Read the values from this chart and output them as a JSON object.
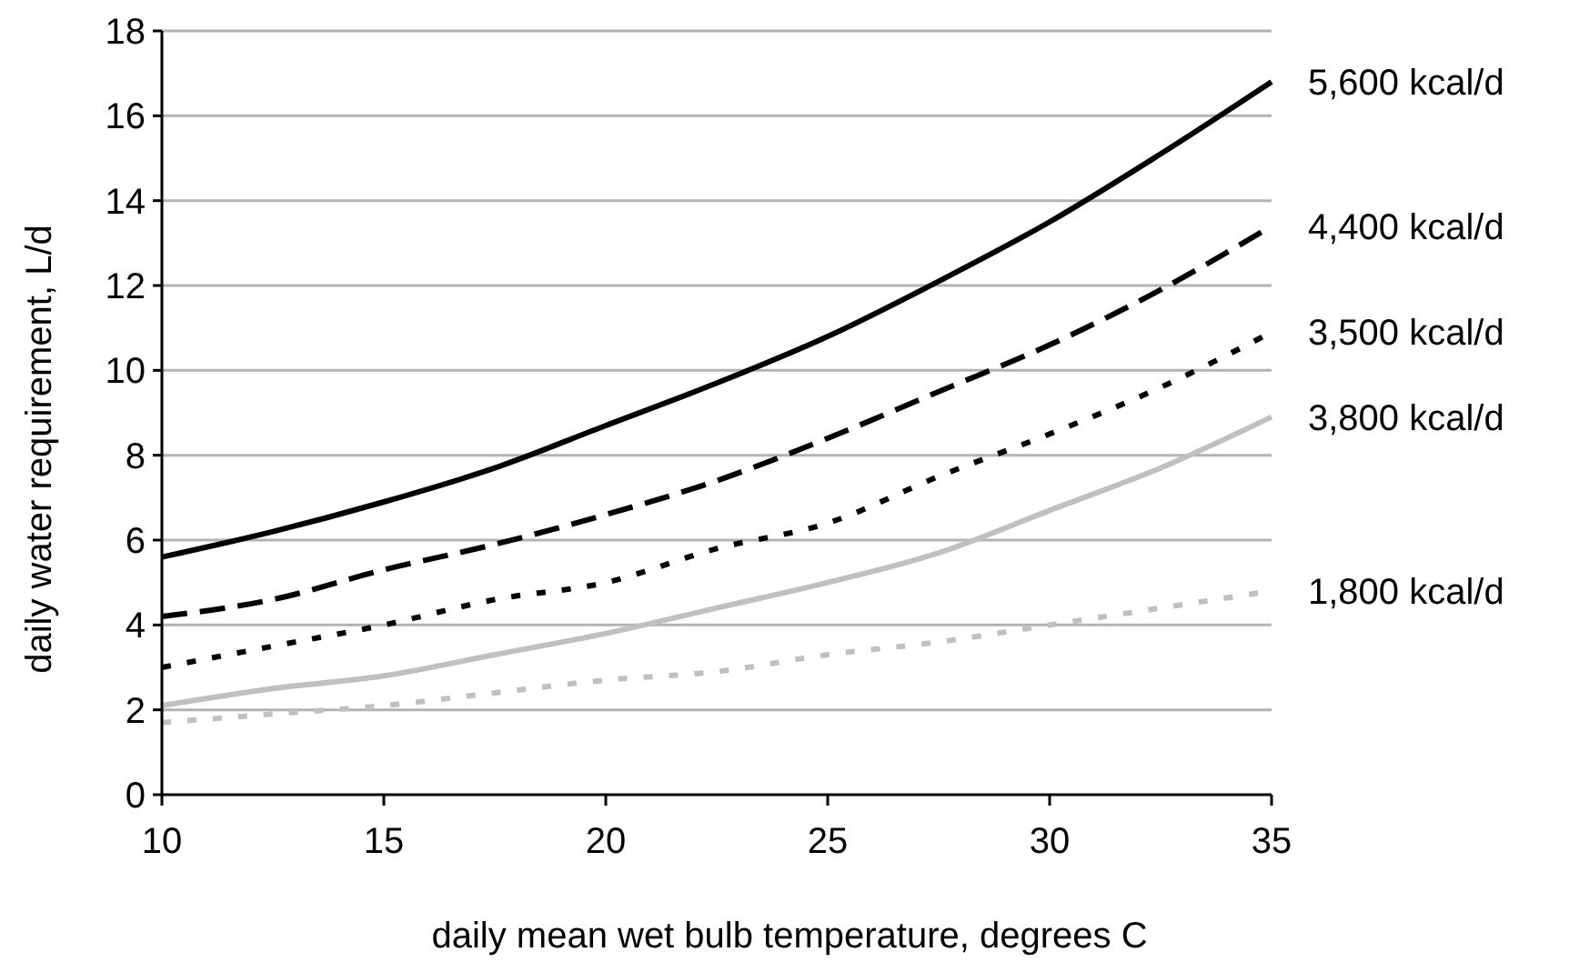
{
  "chart_data": {
    "type": "line",
    "xlabel": "daily mean wet bulb temperature, degrees C",
    "ylabel": "daily water requirement, L/d",
    "x": [
      10,
      12.5,
      15,
      17.5,
      20,
      22.5,
      25,
      27.5,
      30,
      32.5,
      35
    ],
    "series": [
      {
        "name": "5,600 kcal/d",
        "color": "#000000",
        "line_style": "solid",
        "values": [
          5.6,
          6.2,
          6.9,
          7.7,
          8.7,
          9.7,
          10.8,
          12.1,
          13.5,
          15.1,
          16.8
        ]
      },
      {
        "name": "4,400 kcal/d",
        "color": "#000000",
        "line_style": "dashed",
        "values": [
          4.2,
          4.6,
          5.3,
          5.9,
          6.6,
          7.4,
          8.4,
          9.5,
          10.6,
          11.9,
          13.4
        ]
      },
      {
        "name": "3,500 kcal/d",
        "color": "#000000",
        "line_style": "dotted",
        "values": [
          3.0,
          3.5,
          4.0,
          4.6,
          5.0,
          5.8,
          6.4,
          7.5,
          8.5,
          9.6,
          10.9
        ]
      },
      {
        "name": "3,800 kcal/d",
        "color": "#c0c0c0",
        "line_style": "solid",
        "values": [
          2.1,
          2.5,
          2.8,
          3.3,
          3.8,
          4.4,
          5.0,
          5.7,
          6.7,
          7.7,
          8.9
        ]
      },
      {
        "name": "1,800 kcal/d",
        "color": "#c0c0c0",
        "line_style": "dotted",
        "values": [
          1.7,
          1.9,
          2.1,
          2.4,
          2.7,
          2.9,
          3.3,
          3.6,
          4.0,
          4.4,
          4.8
        ]
      }
    ],
    "xlim": [
      10,
      35
    ],
    "xticks": [
      10,
      15,
      20,
      25,
      30,
      35
    ],
    "ylim": [
      0,
      18
    ],
    "yticks": [
      0,
      2,
      4,
      6,
      8,
      10,
      12,
      14,
      16,
      18
    ],
    "grid": "y",
    "marker": "none"
  }
}
